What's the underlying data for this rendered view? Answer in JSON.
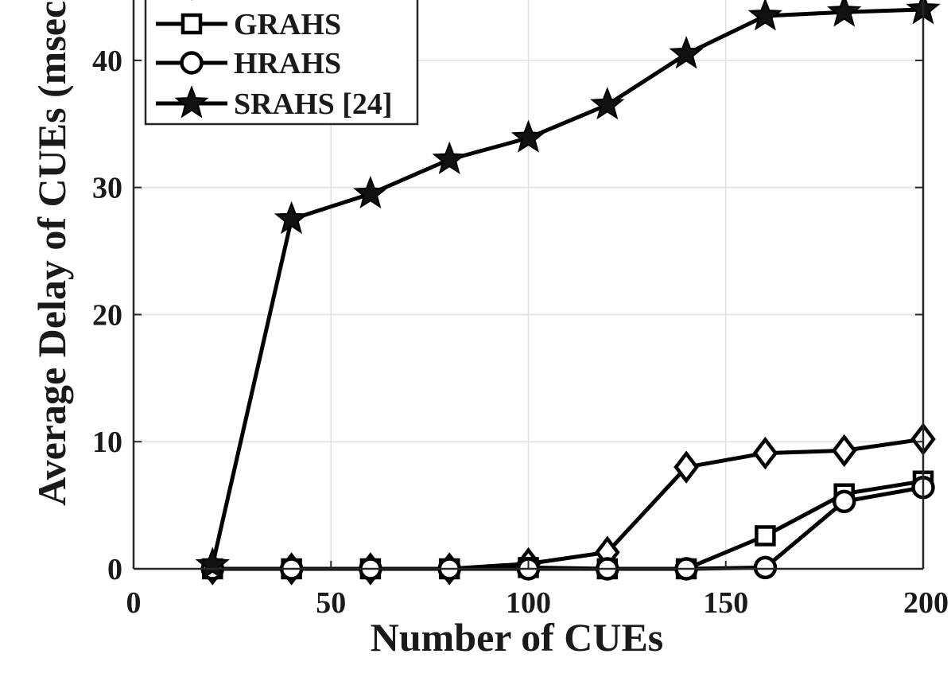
{
  "chart_data": {
    "type": "line",
    "title": "",
    "xlabel": "Number of CUEs",
    "ylabel": "Average Delay of CUEs (msec)",
    "xlim": [
      0,
      200
    ],
    "ylim": [
      0,
      45
    ],
    "xticks": [
      0,
      50,
      100,
      150,
      200
    ],
    "yticks": [
      0,
      10,
      20,
      30,
      40
    ],
    "grid": true,
    "legend_position": "top-left",
    "x": [
      20,
      40,
      60,
      80,
      100,
      120,
      140,
      160,
      180,
      200
    ],
    "series": [
      {
        "marker": "diamond",
        "values": [
          0,
          0,
          0,
          0,
          0.4,
          1.3,
          8.0,
          9.1,
          9.3,
          10.2
        ]
      },
      {
        "name": "GRAHS",
        "marker": "square",
        "values": [
          0,
          0,
          0,
          0,
          0.1,
          0,
          0,
          2.6,
          5.9,
          6.9
        ]
      },
      {
        "name": "HRAHS",
        "marker": "circle",
        "values": [
          0,
          0,
          0,
          0,
          0,
          0,
          0,
          0.1,
          5.3,
          6.4
        ]
      },
      {
        "name": "SRAHS [24]",
        "marker": "star",
        "values": [
          0.3,
          27.5,
          29.5,
          32.2,
          33.9,
          36.5,
          40.5,
          43.5,
          43.8,
          44.0
        ]
      }
    ]
  },
  "colors": {
    "line": "#000000",
    "grid": "#e0e0e0",
    "axis": "#262626"
  }
}
